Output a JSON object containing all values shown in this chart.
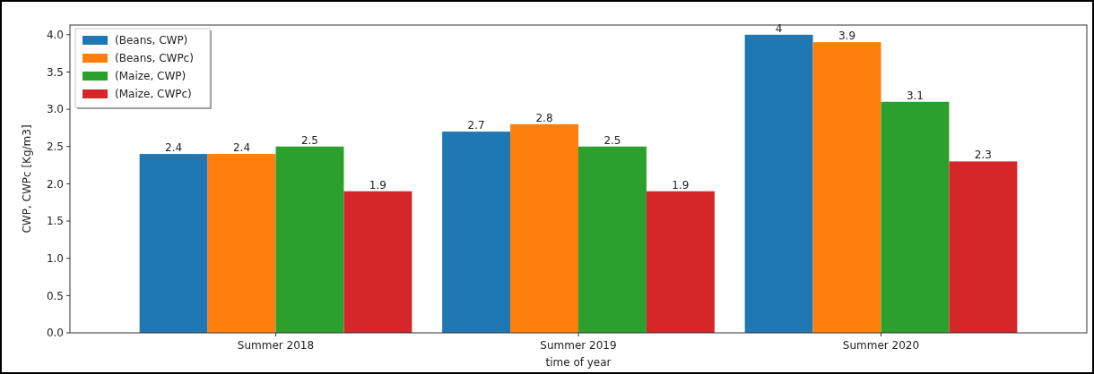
{
  "chart_data": {
    "type": "bar",
    "xlabel": "time of year",
    "ylabel": "CWP, CWPc [Kg/m3]",
    "categories": [
      "Summer 2018",
      "Summer 2019",
      "Summer 2020"
    ],
    "series": [
      {
        "name": "(Beans, CWP)",
        "color": "#1f77b4",
        "values": [
          2.4,
          2.7,
          4
        ]
      },
      {
        "name": "(Beans, CWPc)",
        "color": "#ff7f0e",
        "values": [
          2.4,
          2.8,
          3.9
        ]
      },
      {
        "name": "(Maize, CWP)",
        "color": "#2ca02c",
        "values": [
          2.5,
          2.5,
          3.1
        ]
      },
      {
        "name": "(Maize, CWPc)",
        "color": "#d62728",
        "values": [
          1.9,
          1.9,
          2.3
        ]
      }
    ],
    "ylim": [
      0,
      4.13
    ],
    "yticks": [
      {
        "value": 0,
        "label": "0.0"
      },
      {
        "value": 0.5,
        "label": "0.5"
      },
      {
        "value": 1,
        "label": "1.0"
      },
      {
        "value": 1.5,
        "label": "1.5"
      },
      {
        "value": 2,
        "label": "2.0"
      },
      {
        "value": 2.5,
        "label": "2.5"
      },
      {
        "value": 3,
        "label": "3.0"
      },
      {
        "value": 3.5,
        "label": "3.5"
      },
      {
        "value": 4,
        "label": "4.0"
      }
    ],
    "data_labels": true,
    "legend": "top left",
    "grid": false
  }
}
